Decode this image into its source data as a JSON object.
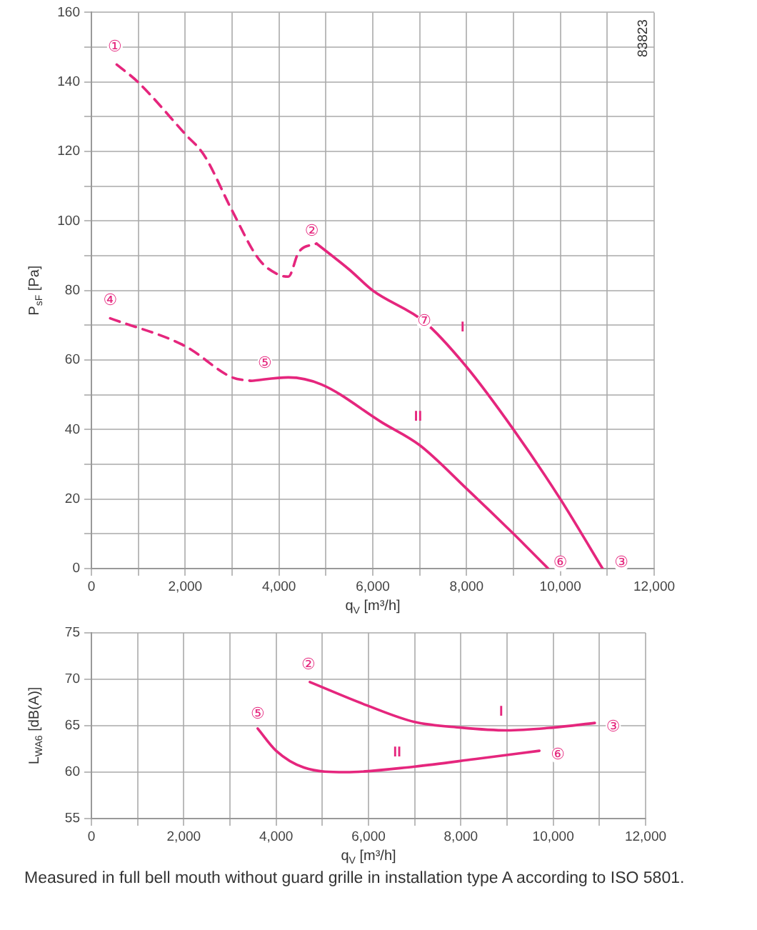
{
  "chart_data": [
    {
      "type": "line",
      "xlabel": "q$_{V}$ [m³/h]",
      "ylabel": "P$_{sF}$ [Pa]",
      "xlim": [
        0,
        12000
      ],
      "xticks": [
        0,
        {
          "value": 1000,
          "label": null
        },
        {
          "value": 2000,
          "label": "2,000"
        },
        {
          "value": 3000,
          "label": null
        },
        {
          "value": 4000,
          "label": "4,000"
        },
        {
          "value": 5000,
          "label": null
        },
        {
          "value": 6000,
          "label": "6,000"
        },
        {
          "value": 7000,
          "label": null
        },
        {
          "value": 8000,
          "label": "8,000"
        },
        {
          "value": 9000,
          "label": null
        },
        {
          "value": 10000,
          "label": "10,000"
        },
        {
          "value": 11000,
          "label": null
        },
        {
          "value": 12000,
          "label": "12,000"
        }
      ],
      "ylim": [
        0,
        160
      ],
      "yticks": [
        0,
        {
          "value": 10,
          "label": null
        },
        20,
        {
          "value": 30,
          "label": null
        },
        40,
        {
          "value": 50,
          "label": null
        },
        60,
        {
          "value": 70,
          "label": null
        },
        80,
        {
          "value": 90,
          "label": null
        },
        100,
        {
          "value": 110,
          "label": null
        },
        120,
        {
          "value": 130,
          "label": null
        },
        140,
        {
          "value": 150,
          "label": null
        },
        160
      ],
      "grid": true,
      "legend": false,
      "marker": "none",
      "series": [
        {
          "color": "#e5267d",
          "line_style": "dashed",
          "x": [
            540,
            990,
            2000,
            2400,
            3000,
            3570,
            4000,
            4200,
            4420,
            4800
          ],
          "values": [
            145,
            140,
            125,
            119,
            103,
            89,
            84.5,
            84,
            91,
            93.5
          ]
        },
        {
          "name": "I",
          "color": "#e5267d",
          "line_style": "solid",
          "x": [
            4800,
            5500,
            6000,
            7100,
            8000,
            9000,
            10000,
            10900
          ],
          "values": [
            93.5,
            86,
            80,
            71,
            58,
            40,
            20,
            0
          ]
        },
        {
          "color": "#e5267d",
          "line_style": "dashed",
          "x": [
            400,
            2000,
            3000,
            3400
          ],
          "values": [
            72,
            64,
            55,
            54
          ]
        },
        {
          "name": "II",
          "color": "#e5267d",
          "line_style": "solid",
          "x": [
            3400,
            4200,
            4900,
            6200,
            7000,
            8000,
            9000,
            9740
          ],
          "values": [
            54,
            55,
            53,
            42,
            35.5,
            23,
            10,
            0
          ]
        }
      ],
      "annotations": [
        {
          "text": "①",
          "x": 500,
          "y": 150
        },
        {
          "text": "②",
          "x": 4700,
          "y": 97
        },
        {
          "text": "③",
          "x": 11300,
          "y": 1.5
        },
        {
          "text": "④",
          "x": 400,
          "y": 77
        },
        {
          "text": "⑤",
          "x": 3700,
          "y": 59
        },
        {
          "text": "⑥",
          "x": 10000,
          "y": 1.5
        },
        {
          "text": "⑦",
          "x": 7100,
          "y": 71
        },
        "83823"
      ]
    },
    {
      "type": "line",
      "xlabel": "q$_{V}$ [m³/h]",
      "ylabel": "L$_{WA6}$ [dB(A)]",
      "xlim": [
        0,
        12000
      ],
      "xticks": [
        0,
        {
          "value": 1000,
          "label": null
        },
        {
          "value": 2000,
          "label": "2,000"
        },
        {
          "value": 3000,
          "label": null
        },
        {
          "value": 4000,
          "label": "4,000"
        },
        {
          "value": 5000,
          "label": null
        },
        {
          "value": 6000,
          "label": "6,000"
        },
        {
          "value": 7000,
          "label": null
        },
        {
          "value": 8000,
          "label": "8,000"
        },
        {
          "value": 9000,
          "label": null
        },
        {
          "value": 10000,
          "label": "10,000"
        },
        {
          "value": 11000,
          "label": null
        },
        {
          "value": 12000,
          "label": "12,000"
        }
      ],
      "ylim": [
        55,
        75
      ],
      "yticks": [
        55,
        60,
        65,
        70,
        75
      ],
      "grid": true,
      "legend": false,
      "marker": "none",
      "series": [
        {
          "name": "I",
          "color": "#e5267d",
          "line_style": "solid",
          "x": [
            4730,
            5960,
            7000,
            8000,
            9000,
            10000,
            10900
          ],
          "values": [
            69.7,
            67.2,
            65.4,
            64.8,
            64.5,
            64.8,
            65.3
          ]
        },
        {
          "name": "II",
          "color": "#e5267d",
          "line_style": "solid",
          "x": [
            3600,
            4000,
            4600,
            5500,
            7000,
            8300,
            9700
          ],
          "values": [
            64.7,
            62.3,
            60.5,
            60,
            60.6,
            61.4,
            62.3
          ]
        }
      ],
      "annotations": [
        {
          "text": "②",
          "x": 4700,
          "y": 71.5
        },
        {
          "text": "③",
          "x": 11300,
          "y": 64.8
        },
        {
          "text": "⑤",
          "x": 3600,
          "y": 66.2
        },
        {
          "text": "⑥",
          "x": 10100,
          "y": 61.8
        },
        "Measured in full bell mouth without guard grille in installation type A according to ISO 5801."
      ]
    }
  ]
}
